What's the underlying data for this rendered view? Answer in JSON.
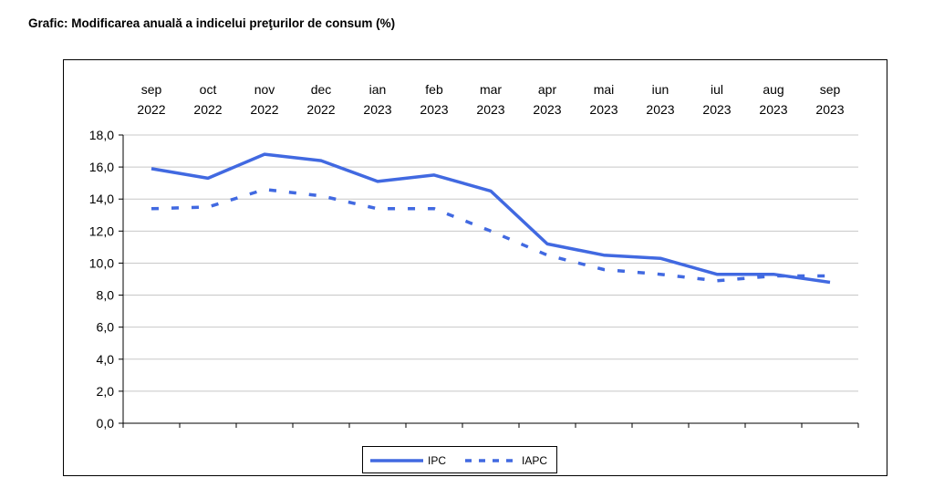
{
  "title": "Grafic: Modificarea anuală a indicelui preţurilor de consum (%)",
  "chart_data": {
    "type": "line",
    "title": "Grafic: Modificarea anuală a indicelui preţurilor de consum (%)",
    "categories": [
      [
        "sep",
        "2022"
      ],
      [
        "oct",
        "2022"
      ],
      [
        "nov",
        "2022"
      ],
      [
        "dec",
        "2022"
      ],
      [
        "ian",
        "2023"
      ],
      [
        "feb",
        "2023"
      ],
      [
        "mar",
        "2023"
      ],
      [
        "apr",
        "2023"
      ],
      [
        "mai",
        "2023"
      ],
      [
        "iun",
        "2023"
      ],
      [
        "iul",
        "2023"
      ],
      [
        "aug",
        "2023"
      ],
      [
        "sep",
        "2023"
      ]
    ],
    "ylim": [
      0,
      18
    ],
    "yticks": [
      "0,0",
      "2,0",
      "4,0",
      "6,0",
      "8,0",
      "10,0",
      "12,0",
      "14,0",
      "16,0",
      "18,0"
    ],
    "x_axis_position": "top",
    "grid": true,
    "legend_position": "bottom",
    "series": [
      {
        "name": "IPC",
        "style": "solid",
        "color": "#4169e1",
        "values": [
          15.9,
          15.3,
          16.8,
          16.4,
          15.1,
          15.5,
          14.5,
          11.2,
          10.5,
          10.3,
          9.3,
          9.3,
          8.8
        ]
      },
      {
        "name": "IAPC",
        "style": "dashed",
        "color": "#4169e1",
        "values": [
          13.4,
          13.5,
          14.6,
          14.2,
          13.4,
          13.4,
          12.0,
          10.5,
          9.6,
          9.3,
          8.9,
          9.2,
          9.2
        ]
      }
    ]
  }
}
